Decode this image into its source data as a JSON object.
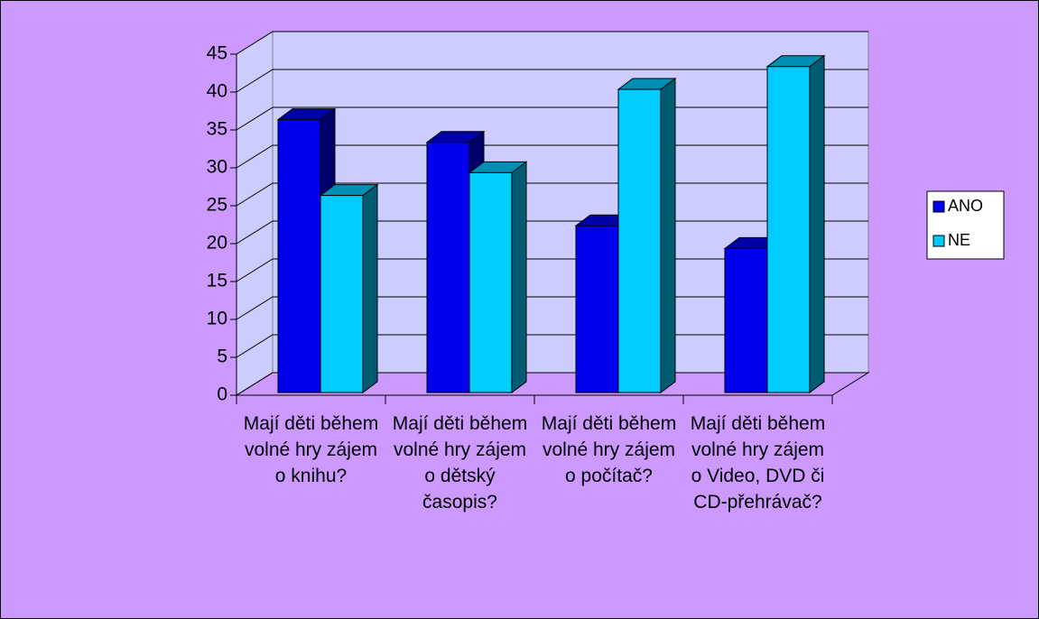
{
  "chart_data": {
    "type": "bar",
    "categories": [
      "Mají děti během volné hry zájem o knihu?",
      "Mají děti během volné hry zájem o dětský časopis?",
      "Mají děti během volné hry zájem o počítač?",
      "Mají děti během volné hry zájem o Video, DVD či CD-přehrávač?"
    ],
    "series": [
      {
        "name": "ANO",
        "color": "#0000ee",
        "values": [
          36,
          33,
          22,
          19
        ]
      },
      {
        "name": "NE",
        "color": "#00ccff",
        "values": [
          26,
          29,
          40,
          43
        ]
      }
    ],
    "ylim": [
      0,
      45
    ],
    "yticks": [
      0,
      5,
      10,
      15,
      20,
      25,
      30,
      35,
      40,
      45
    ],
    "grid": true,
    "legend": "right"
  }
}
